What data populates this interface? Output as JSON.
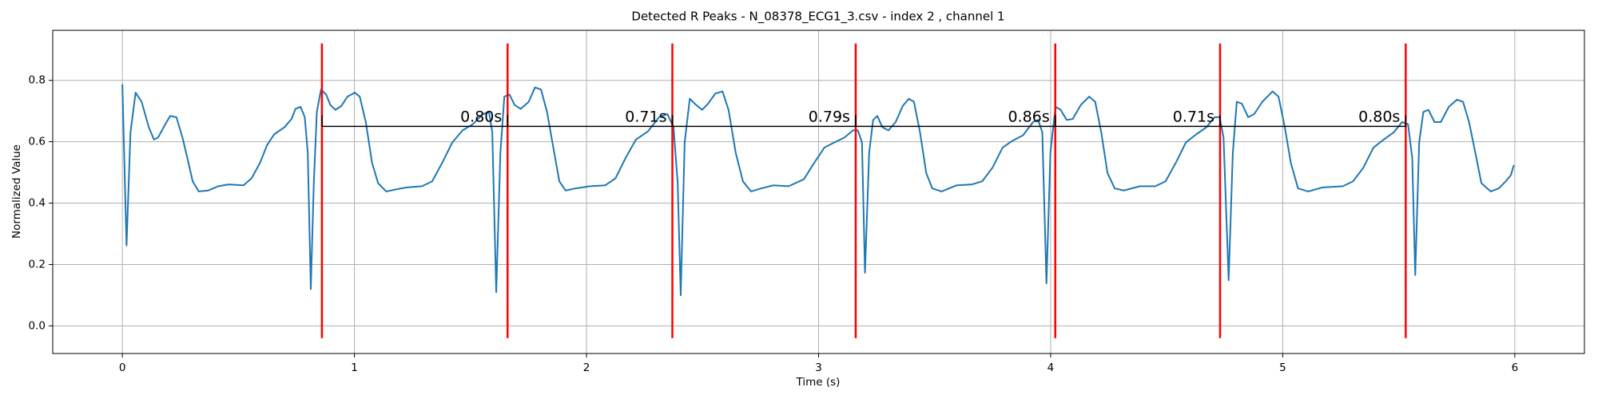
{
  "chart_data": {
    "type": "line",
    "title": "Detected R Peaks - N_08378_ECG1_3.csv - index 2 , channel 1",
    "x_label": "Time (s)",
    "y_label": "Normalized Value",
    "xlim": [
      -0.3,
      6.3
    ],
    "ylim": [
      -0.09,
      0.963
    ],
    "xticks": [
      0,
      1,
      2,
      3,
      4,
      5,
      6
    ],
    "yticks": [
      {
        "value": 0,
        "label": "0.0"
      },
      0.2,
      0.4,
      0.6,
      0.8
    ],
    "grid": true,
    "series": [
      {
        "color": "#1f77b4",
        "x": [
          0,
          0.018,
          0.035,
          0.057,
          0.083,
          0.114,
          0.136,
          0.154,
          0.18,
          0.206,
          0.233,
          0.259,
          0.285,
          0.303,
          0.329,
          0.369,
          0.413,
          0.457,
          0.522,
          0.557,
          0.593,
          0.623,
          0.654,
          0.698,
          0.729,
          0.746,
          0.768,
          0.786,
          0.799,
          0.812,
          0.825,
          0.838,
          0.856,
          0.878,
          0.896,
          0.918,
          0.944,
          0.97,
          1.001,
          1.023,
          1.049,
          1.076,
          1.102,
          1.137,
          1.181,
          1.225,
          1.291,
          1.335,
          1.378,
          1.422,
          1.466,
          1.51,
          1.554,
          1.58,
          1.594,
          1.611,
          1.629,
          1.646,
          1.668,
          1.69,
          1.716,
          1.751,
          1.778,
          1.804,
          1.83,
          1.857,
          1.883,
          1.91,
          1.953,
          2.015,
          2.081,
          2.125,
          2.169,
          2.213,
          2.265,
          2.313,
          2.349,
          2.375,
          2.393,
          2.406,
          2.423,
          2.445,
          2.472,
          2.498,
          2.524,
          2.555,
          2.586,
          2.612,
          2.643,
          2.674,
          2.709,
          2.753,
          2.805,
          2.871,
          2.937,
          2.981,
          3.025,
          3.069,
          3.112,
          3.148,
          3.169,
          3.187,
          3.2,
          3.218,
          3.235,
          3.253,
          3.275,
          3.301,
          3.332,
          3.363,
          3.389,
          3.411,
          3.437,
          3.464,
          3.49,
          3.53,
          3.595,
          3.661,
          3.705,
          3.749,
          3.793,
          3.837,
          3.881,
          3.924,
          3.946,
          3.964,
          3.982,
          3.999,
          4.021,
          4.043,
          4.069,
          4.095,
          4.13,
          4.166,
          4.192,
          4.218,
          4.245,
          4.276,
          4.315,
          4.385,
          4.451,
          4.495,
          4.539,
          4.583,
          4.627,
          4.671,
          4.706,
          4.728,
          4.745,
          4.767,
          4.785,
          4.802,
          4.824,
          4.851,
          4.877,
          4.912,
          4.956,
          4.982,
          5.009,
          5.035,
          5.066,
          5.11,
          5.171,
          5.259,
          5.303,
          5.347,
          5.391,
          5.435,
          5.479,
          5.514,
          5.54,
          5.558,
          5.571,
          5.588,
          5.606,
          5.628,
          5.654,
          5.681,
          5.716,
          5.751,
          5.777,
          5.803,
          5.83,
          5.856,
          5.896,
          5.931,
          5.961,
          5.983,
          5.996
        ],
        "values": [
          0.787,
          0.262,
          0.63,
          0.76,
          0.73,
          0.647,
          0.607,
          0.614,
          0.65,
          0.684,
          0.68,
          0.614,
          0.531,
          0.471,
          0.438,
          0.441,
          0.455,
          0.461,
          0.458,
          0.481,
          0.531,
          0.588,
          0.624,
          0.647,
          0.674,
          0.707,
          0.714,
          0.68,
          0.564,
          0.12,
          0.465,
          0.697,
          0.77,
          0.754,
          0.72,
          0.704,
          0.717,
          0.747,
          0.76,
          0.747,
          0.664,
          0.531,
          0.465,
          0.438,
          0.445,
          0.451,
          0.455,
          0.471,
          0.531,
          0.598,
          0.637,
          0.657,
          0.69,
          0.697,
          0.631,
          0.11,
          0.564,
          0.747,
          0.754,
          0.72,
          0.707,
          0.73,
          0.777,
          0.77,
          0.697,
          0.581,
          0.471,
          0.441,
          0.448,
          0.455,
          0.458,
          0.481,
          0.548,
          0.607,
          0.634,
          0.68,
          0.69,
          0.647,
          0.465,
          0.1,
          0.598,
          0.74,
          0.72,
          0.704,
          0.724,
          0.757,
          0.764,
          0.704,
          0.564,
          0.471,
          0.438,
          0.448,
          0.458,
          0.455,
          0.478,
          0.531,
          0.581,
          0.598,
          0.614,
          0.637,
          0.637,
          0.598,
          0.173,
          0.564,
          0.671,
          0.684,
          0.647,
          0.637,
          0.664,
          0.717,
          0.74,
          0.73,
          0.631,
          0.498,
          0.448,
          0.438,
          0.458,
          0.461,
          0.471,
          0.515,
          0.581,
          0.604,
          0.621,
          0.664,
          0.671,
          0.631,
          0.139,
          0.564,
          0.714,
          0.704,
          0.671,
          0.674,
          0.72,
          0.747,
          0.73,
          0.631,
          0.498,
          0.448,
          0.441,
          0.455,
          0.455,
          0.471,
          0.531,
          0.598,
          0.624,
          0.647,
          0.68,
          0.68,
          0.614,
          0.149,
          0.564,
          0.73,
          0.724,
          0.68,
          0.69,
          0.73,
          0.764,
          0.747,
          0.647,
          0.531,
          0.448,
          0.438,
          0.451,
          0.455,
          0.471,
          0.515,
          0.581,
          0.607,
          0.631,
          0.664,
          0.657,
          0.548,
          0.166,
          0.598,
          0.697,
          0.704,
          0.664,
          0.664,
          0.714,
          0.737,
          0.73,
          0.664,
          0.564,
          0.465,
          0.438,
          0.448,
          0.471,
          0.491,
          0.524
        ]
      }
    ],
    "peaks": {
      "x": [
        0.86,
        1.66,
        2.37,
        3.16,
        4.02,
        4.73,
        5.53
      ],
      "color": "red",
      "ymin": -0.04,
      "ymax": 0.92
    },
    "intervals": {
      "values": [
        0.8,
        0.71,
        0.79,
        0.86,
        0.71,
        0.8
      ],
      "value_labels": [
        "0.80s",
        "0.71s",
        "0.79s",
        "0.86s",
        "0.71s",
        "0.80s"
      ],
      "level": 0.65,
      "color": "black"
    }
  }
}
